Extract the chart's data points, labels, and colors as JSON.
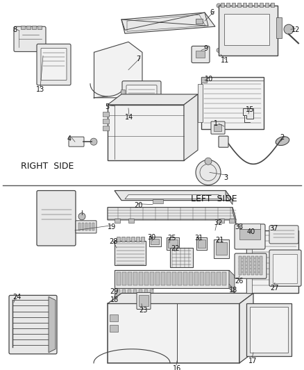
{
  "bg_color": "#ffffff",
  "line_color": "#444444",
  "text_color": "#111111",
  "gray_fill": "#e8e8e8",
  "dark_gray": "#c0c0c0",
  "light_fill": "#f2f2f2",
  "right_side_label": "RIGHT  SIDE",
  "left_side_label": "LEFT  SIDE",
  "font_size_num": 7,
  "font_size_section": 9,
  "divider_color": "#555555"
}
